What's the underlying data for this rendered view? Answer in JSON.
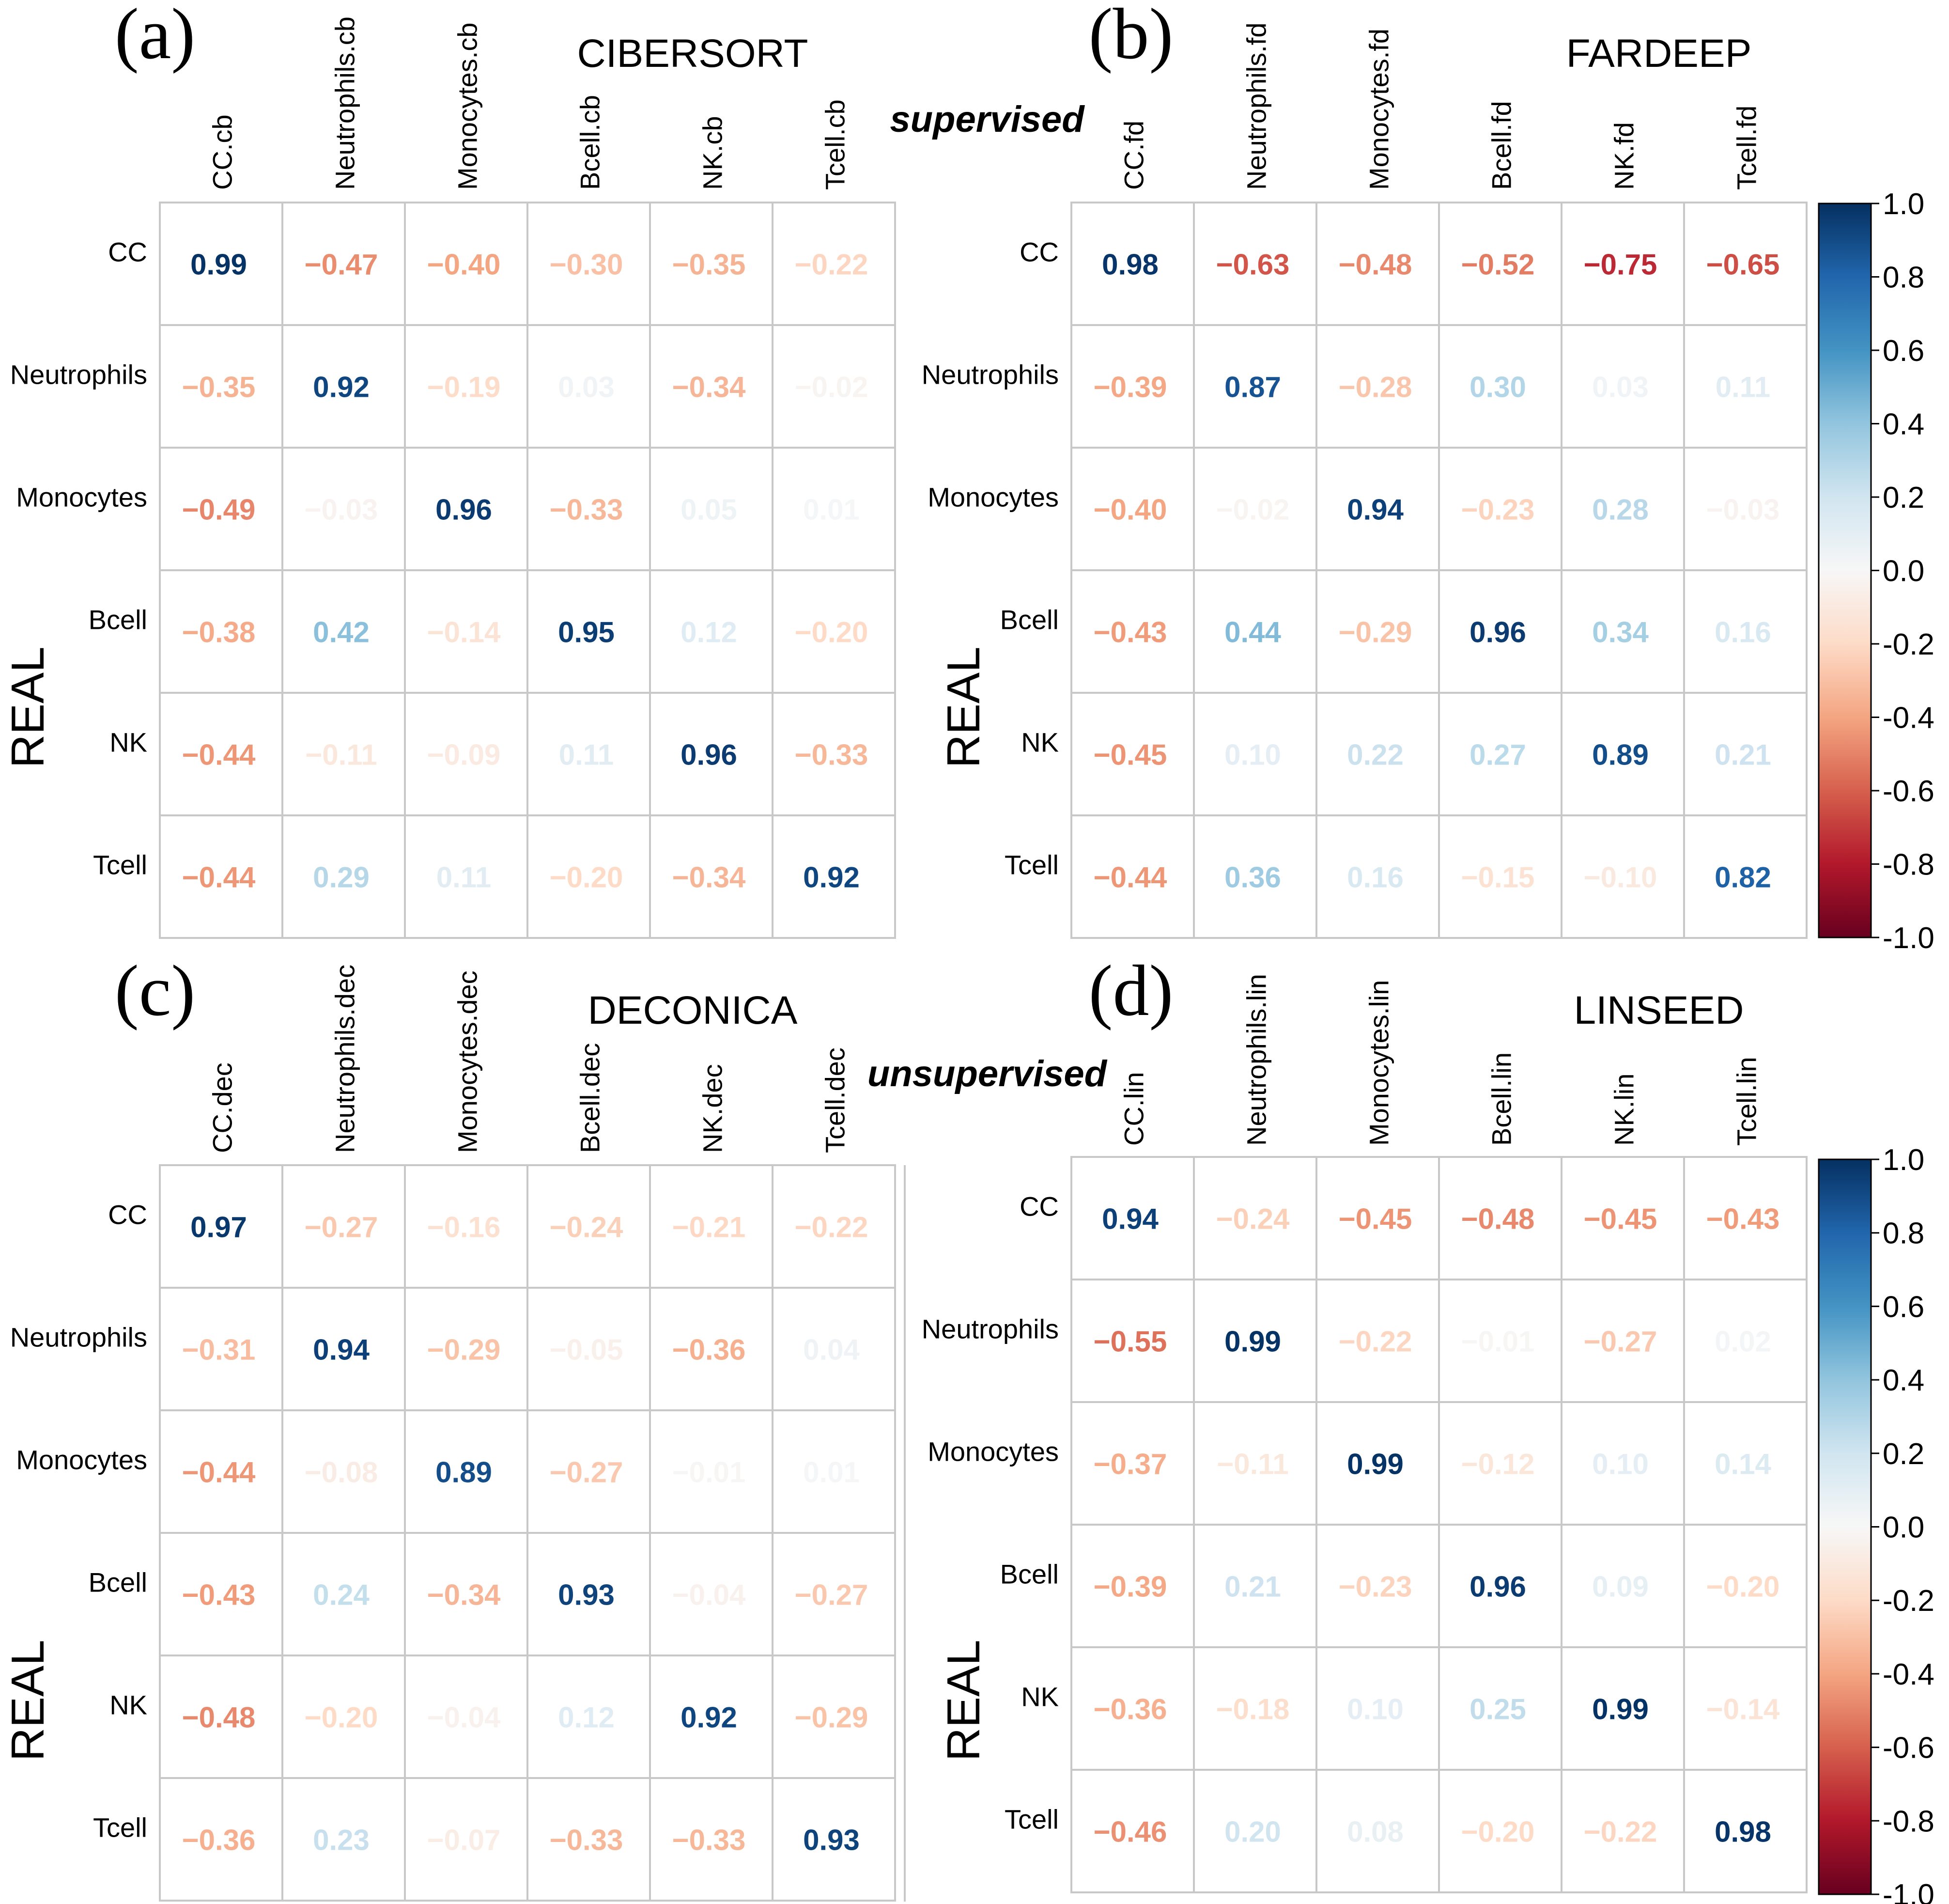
{
  "figure": {
    "supervised_label": "supervised",
    "unsupervised_label": "unsupervised",
    "colorbar": {
      "ticks": [
        "1.0",
        "0.8",
        "0.6",
        "0.4",
        "0.2",
        "0.0",
        "-0.2",
        "-0.4",
        "-0.6",
        "-0.8",
        "-1.0"
      ],
      "colors": [
        "#053061",
        "#2166AC",
        "#4393C3",
        "#92C5DE",
        "#D1E5F0",
        "#F7F7F7",
        "#FDDBC7",
        "#F4A582",
        "#D6604D",
        "#B2182B",
        "#67001F"
      ]
    }
  },
  "chart_data": [
    {
      "type": "heatmap",
      "panel_label": "(a)",
      "title": "CIBERSORT",
      "ylabel": "REAL",
      "row_labels": [
        "CC",
        "Neutrophils",
        "Monocytes",
        "Bcell",
        "NK",
        "Tcell"
      ],
      "col_labels": [
        "CC.cb",
        "Neutrophils.cb",
        "Monocytes.cb",
        "Bcell.cb",
        "NK.cb",
        "Tcell.cb"
      ],
      "values": [
        [
          0.99,
          -0.47,
          -0.4,
          -0.3,
          -0.35,
          -0.22
        ],
        [
          -0.35,
          0.92,
          -0.19,
          0.03,
          -0.34,
          -0.02
        ],
        [
          -0.49,
          -0.03,
          0.96,
          -0.33,
          0.05,
          0.01
        ],
        [
          -0.38,
          0.42,
          -0.14,
          0.95,
          0.12,
          -0.2
        ],
        [
          -0.44,
          -0.11,
          -0.09,
          0.11,
          0.96,
          -0.33
        ],
        [
          -0.44,
          0.29,
          0.11,
          -0.2,
          -0.34,
          0.92
        ]
      ],
      "value_labels": [
        [
          "0.99",
          "−0.47",
          "−0.40",
          "−0.30",
          "−0.35",
          "−0.22"
        ],
        [
          "−0.35",
          "0.92",
          "−0.19",
          "0.03",
          "−0.34",
          "−0.02"
        ],
        [
          "−0.49",
          "−0.03",
          "0.96",
          "−0.33",
          "0.05",
          "0.01"
        ],
        [
          "−0.38",
          "0.42",
          "−0.14",
          "0.95",
          "0.12",
          "−0.20"
        ],
        [
          "−0.44",
          "−0.11",
          "−0.09",
          "0.11",
          "0.96",
          "−0.33"
        ],
        [
          "−0.44",
          "0.29",
          "0.11",
          "−0.20",
          "−0.34",
          "0.92"
        ]
      ],
      "range": [
        -1,
        1
      ]
    },
    {
      "type": "heatmap",
      "panel_label": "(b)",
      "title": "FARDEEP",
      "ylabel": "REAL",
      "row_labels": [
        "CC",
        "Neutrophils",
        "Monocytes",
        "Bcell",
        "NK",
        "Tcell"
      ],
      "col_labels": [
        "CC.fd",
        "Neutrophils.fd",
        "Monocytes.fd",
        "Bcell.fd",
        "NK.fd",
        "Tcell.fd"
      ],
      "values": [
        [
          0.98,
          -0.63,
          -0.48,
          -0.52,
          -0.75,
          -0.65
        ],
        [
          -0.39,
          0.87,
          -0.28,
          0.3,
          0.03,
          0.11
        ],
        [
          -0.4,
          -0.02,
          0.94,
          -0.23,
          0.28,
          -0.03
        ],
        [
          -0.43,
          0.44,
          -0.29,
          0.96,
          0.34,
          0.16
        ],
        [
          -0.45,
          0.1,
          0.22,
          0.27,
          0.89,
          0.21
        ],
        [
          -0.44,
          0.36,
          0.16,
          -0.15,
          -0.1,
          0.82
        ]
      ],
      "value_labels": [
        [
          "0.98",
          "−0.63",
          "−0.48",
          "−0.52",
          "−0.75",
          "−0.65"
        ],
        [
          "−0.39",
          "0.87",
          "−0.28",
          "0.30",
          "0.03",
          "0.11"
        ],
        [
          "−0.40",
          "−0.02",
          "0.94",
          "−0.23",
          "0.28",
          "−0.03"
        ],
        [
          "−0.43",
          "0.44",
          "−0.29",
          "0.96",
          "0.34",
          "0.16"
        ],
        [
          "−0.45",
          "0.10",
          "0.22",
          "0.27",
          "0.89",
          "0.21"
        ],
        [
          "−0.44",
          "0.36",
          "0.16",
          "−0.15",
          "−0.10",
          "0.82"
        ]
      ],
      "range": [
        -1,
        1
      ]
    },
    {
      "type": "heatmap",
      "panel_label": "(c)",
      "title": "DECONICA",
      "ylabel": "REAL",
      "row_labels": [
        "CC",
        "Neutrophils",
        "Monocytes",
        "Bcell",
        "NK",
        "Tcell"
      ],
      "col_labels": [
        "CC.dec",
        "Neutrophils.dec",
        "Monocytes.dec",
        "Bcell.dec",
        "NK.dec",
        "Tcell.dec"
      ],
      "values": [
        [
          0.97,
          -0.27,
          -0.16,
          -0.24,
          -0.21,
          -0.22
        ],
        [
          -0.31,
          0.94,
          -0.29,
          -0.05,
          -0.36,
          0.04
        ],
        [
          -0.44,
          -0.08,
          0.89,
          -0.27,
          -0.01,
          0.01
        ],
        [
          -0.43,
          0.24,
          -0.34,
          0.93,
          -0.04,
          -0.27
        ],
        [
          -0.48,
          -0.2,
          -0.04,
          0.12,
          0.92,
          -0.29
        ],
        [
          -0.36,
          0.23,
          -0.07,
          -0.33,
          -0.33,
          0.93
        ]
      ],
      "value_labels": [
        [
          "0.97",
          "−0.27",
          "−0.16",
          "−0.24",
          "−0.21",
          "−0.22"
        ],
        [
          "−0.31",
          "0.94",
          "−0.29",
          "−0.05",
          "−0.36",
          "0.04"
        ],
        [
          "−0.44",
          "−0.08",
          "0.89",
          "−0.27",
          "−0.01",
          "0.01"
        ],
        [
          "−0.43",
          "0.24",
          "−0.34",
          "0.93",
          "−0.04",
          "−0.27"
        ],
        [
          "−0.48",
          "−0.20",
          "−0.04",
          "0.12",
          "0.92",
          "−0.29"
        ],
        [
          "−0.36",
          "0.23",
          "−0.07",
          "−0.33",
          "−0.33",
          "0.93"
        ]
      ],
      "range": [
        -1,
        1
      ]
    },
    {
      "type": "heatmap",
      "panel_label": "(d)",
      "title": "LINSEED",
      "ylabel": "REAL",
      "row_labels": [
        "CC",
        "Neutrophils",
        "Monocytes",
        "Bcell",
        "NK",
        "Tcell"
      ],
      "col_labels": [
        "CC.lin",
        "Neutrophils.lin",
        "Monocytes.lin",
        "Bcell.lin",
        "NK.lin",
        "Tcell.lin"
      ],
      "values": [
        [
          0.94,
          -0.24,
          -0.45,
          -0.48,
          -0.45,
          -0.43
        ],
        [
          -0.55,
          0.99,
          -0.22,
          -0.01,
          -0.27,
          0.02
        ],
        [
          -0.37,
          -0.11,
          0.99,
          -0.12,
          0.1,
          0.14
        ],
        [
          -0.39,
          0.21,
          -0.23,
          0.96,
          0.09,
          -0.2
        ],
        [
          -0.36,
          -0.18,
          0.1,
          0.25,
          0.99,
          -0.14
        ],
        [
          -0.46,
          0.2,
          0.08,
          -0.2,
          -0.22,
          0.98
        ]
      ],
      "value_labels": [
        [
          "0.94",
          "−0.24",
          "−0.45",
          "−0.48",
          "−0.45",
          "−0.43"
        ],
        [
          "−0.55",
          "0.99",
          "−0.22",
          "−0.01",
          "−0.27",
          "0.02"
        ],
        [
          "−0.37",
          "−0.11",
          "0.99",
          "−0.12",
          "0.10",
          "0.14"
        ],
        [
          "−0.39",
          "0.21",
          "−0.23",
          "0.96",
          "0.09",
          "−0.20"
        ],
        [
          "−0.36",
          "−0.18",
          "0.10",
          "0.25",
          "0.99",
          "−0.14"
        ],
        [
          "−0.46",
          "0.20",
          "0.08",
          "−0.20",
          "−0.22",
          "0.98"
        ]
      ],
      "range": [
        -1,
        1
      ]
    }
  ]
}
